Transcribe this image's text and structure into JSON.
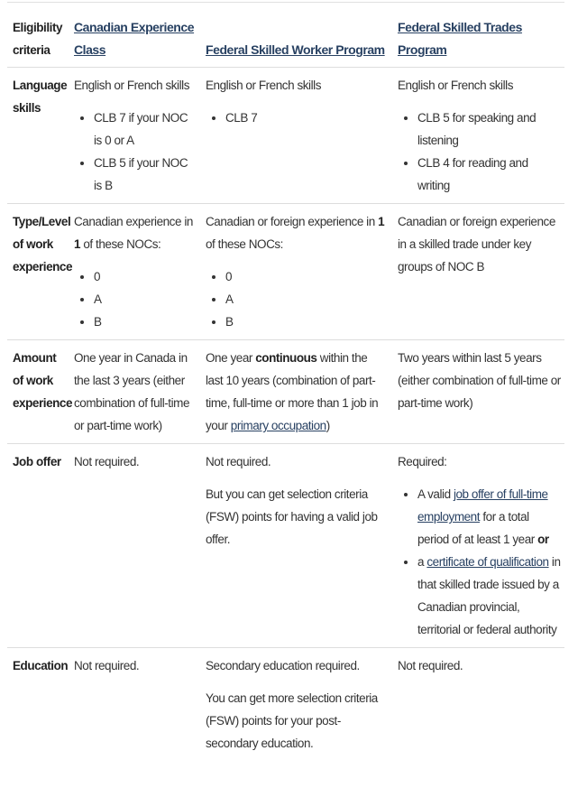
{
  "header": {
    "criteria": "Eligibility criteria",
    "cec": "Canadian Experience Class",
    "fsw": "Federal Skilled Worker Program",
    "fst": "Federal Skilled Trades Program"
  },
  "language": {
    "label": "Language skills",
    "cec_intro": "English or French skills",
    "cec_items": [
      "CLB 7 if your NOC is 0 or A",
      "CLB 5 if your NOC is B"
    ],
    "fsw_intro": "English or French skills",
    "fsw_items": [
      "CLB 7"
    ],
    "fst_intro": "English or French skills",
    "fst_items": [
      "CLB 5 for speaking and listening",
      "CLB 4 for reading and writing"
    ]
  },
  "type": {
    "label": "Type/Level of work experience",
    "cec_pre": "Canadian experience in ",
    "cec_num": "1",
    "cec_post": " of these NOCs:",
    "cec_items": [
      "0",
      "A",
      "B"
    ],
    "fsw_pre": "Canadian or foreign experience in ",
    "fsw_num": "1",
    "fsw_post": " of these NOCs:",
    "fsw_items": [
      "0",
      "A",
      "B"
    ],
    "fst_text": "Canadian or foreign experience in a skilled trade under key groups of NOC B"
  },
  "amount": {
    "label": "Amount of work experience",
    "cec_text": "One year in Canada in the last 3 years (either combination of full-time or part-time work)",
    "fsw_pre": "One year ",
    "fsw_bold": "continuous",
    "fsw_mid": " within the last 10 years (combination of part-time, full-time or more than 1 job in your ",
    "fsw_link": "primary occupation",
    "fsw_post": ")",
    "fst_text": "Two years within last 5 years (either combination of full-time or part-time work)"
  },
  "job": {
    "label": "Job offer",
    "cec_text": "Not required.",
    "fsw_text1": "Not required.",
    "fsw_text2": "But you can get selection criteria (FSW) points for having a valid job offer.",
    "fst_text": "Required:",
    "fst_item1_pre": "A valid ",
    "fst_item1_link": "job offer of full-time employment",
    "fst_item1_mid": " for a total period of at least 1 year ",
    "fst_item1_bold": "or",
    "fst_item2_pre": "a ",
    "fst_item2_link": "certificate of qualification",
    "fst_item2_post": " in that skilled trade issued by a Canadian provincial, territorial or federal authority"
  },
  "education": {
    "label": "Education",
    "cec_text": "Not required.",
    "fsw_text1": "Secondary education required.",
    "fsw_text2": "You can get more selection criteria (FSW) points for your post-secondary education.",
    "fst_text": "Not required."
  },
  "colors": {
    "link": "#284162",
    "text": "#333333",
    "divider": "#dddddd"
  }
}
